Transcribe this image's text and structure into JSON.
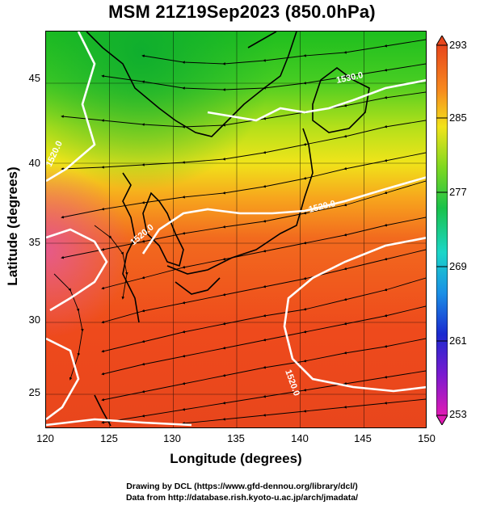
{
  "title": "MSM 21Z19Sep2023 (850.0hPa)",
  "x_axis": {
    "label": "Longitude (degrees)",
    "ticks": [
      "120",
      "125",
      "130",
      "135",
      "140",
      "145",
      "150"
    ]
  },
  "y_axis": {
    "label": "Latitude  (degrees)",
    "ticks": [
      "25",
      "30",
      "35",
      "40",
      "45"
    ]
  },
  "colorbar": {
    "ticks": [
      "293",
      "285",
      "277",
      "269",
      "261",
      "253"
    ]
  },
  "contour_labels": [
    "1530.0",
    "1520.0",
    "1520.0",
    "1520.0",
    "1520.0"
  ],
  "credits": {
    "line1": "Drawing by DCL (https://www.gfd-dennou.org/library/dcl/)",
    "line2": "Data from http://database.rish.kyoto-u.ac.jp/arch/jmadata/"
  },
  "map_data": {
    "type": "temperature-field-with-streamlines",
    "lon_range": [
      120,
      150
    ],
    "lat_range": [
      22.5,
      48
    ],
    "temperature_range_K": [
      253,
      293
    ]
  }
}
